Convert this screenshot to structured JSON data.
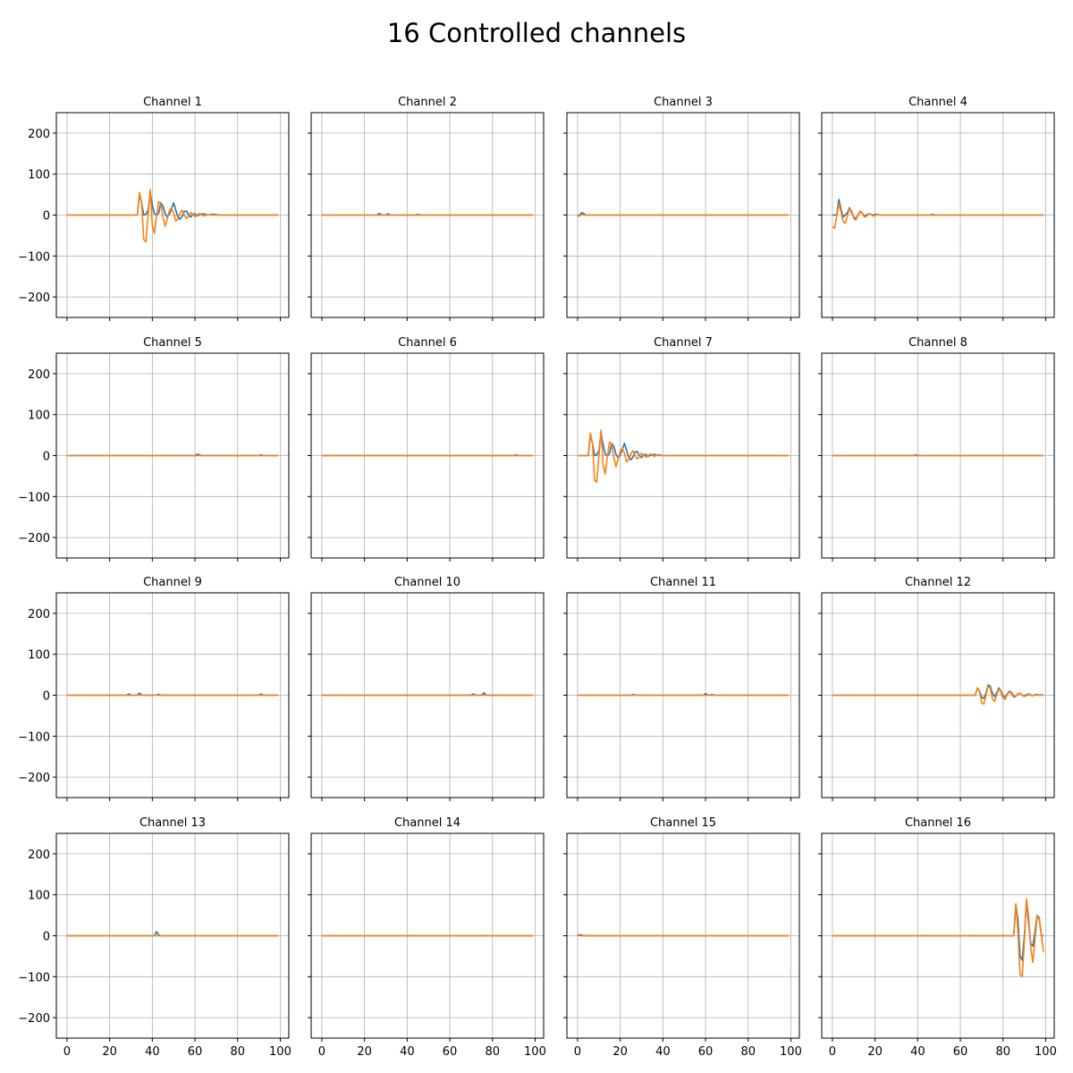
{
  "figure": {
    "title": "16 Controlled channels"
  },
  "colors": {
    "series_1": "#1f77b4",
    "series_2": "#ff7f0e",
    "grid": "#b0b0b0"
  },
  "chart_data": {
    "type": "line",
    "layout": "4x4 grid of subplots, shared x and y axes",
    "grid": true,
    "xlim": [
      -5,
      104
    ],
    "ylim": [
      -250,
      250
    ],
    "x_ticks": [
      0,
      20,
      40,
      60,
      80,
      100
    ],
    "y_ticks": [
      200,
      100,
      0,
      -100,
      -200
    ],
    "x_tick_labels": [
      "0",
      "20",
      "40",
      "60",
      "80",
      "100"
    ],
    "y_tick_labels": [
      "200",
      "100",
      "0",
      "−100",
      "−200"
    ],
    "subplots": [
      {
        "title": "Channel 1",
        "series": [
          {
            "x": [
              0,
              33,
              34,
              35,
              36,
              37,
              38,
              39,
              40,
              41,
              42,
              43,
              44,
              45,
              46,
              47,
              48,
              49,
              50,
              51,
              52,
              53,
              54,
              55,
              56,
              57,
              58,
              59,
              60,
              61,
              62,
              63,
              64,
              66,
              68,
              72,
              99
            ],
            "y": [
              0,
              0,
              50,
              30,
              0,
              2,
              12,
              55,
              25,
              3,
              0,
              5,
              30,
              22,
              3,
              -5,
              2,
              15,
              30,
              12,
              -5,
              -10,
              -3,
              8,
              10,
              0,
              -5,
              2,
              3,
              -2,
              0,
              2,
              3,
              0,
              2,
              0,
              0
            ]
          },
          {
            "x": [
              0,
              33,
              34,
              35,
              36,
              37,
              38,
              39,
              40,
              41,
              42,
              43,
              44,
              45,
              46,
              47,
              48,
              49,
              50,
              51,
              52,
              53,
              54,
              55,
              56,
              57,
              58,
              59,
              60,
              61,
              62,
              63,
              64,
              66,
              68,
              72,
              99
            ],
            "y": [
              0,
              0,
              55,
              30,
              -60,
              -65,
              0,
              62,
              -25,
              -45,
              0,
              33,
              28,
              -5,
              -27,
              -10,
              10,
              18,
              5,
              -15,
              -10,
              5,
              12,
              0,
              -8,
              -3,
              6,
              2,
              -4,
              -2,
              4,
              1,
              -2,
              1,
              0,
              0,
              0
            ]
          }
        ]
      },
      {
        "title": "Channel 2",
        "series": [
          {
            "x": [
              0,
              26,
              27,
              28,
              30,
              31,
              32,
              44,
              45,
              46,
              99
            ],
            "y": [
              0,
              0,
              4,
              0,
              0,
              3,
              0,
              0,
              2,
              0,
              0
            ]
          },
          {
            "x": [
              0,
              99
            ],
            "y": [
              0,
              0
            ]
          }
        ]
      },
      {
        "title": "Channel 3",
        "series": [
          {
            "x": [
              0,
              1,
              2,
              3,
              4,
              99
            ],
            "y": [
              -2,
              0,
              6,
              3,
              0,
              0
            ]
          },
          {
            "x": [
              0,
              1,
              2,
              3,
              4,
              99
            ],
            "y": [
              -4,
              -2,
              2,
              0,
              0,
              0
            ]
          }
        ]
      },
      {
        "title": "Channel 4",
        "series": [
          {
            "x": [
              0,
              1,
              2,
              3,
              4,
              5,
              6,
              7,
              8,
              9,
              10,
              11,
              12,
              13,
              14,
              15,
              16,
              17,
              18,
              19,
              20,
              21,
              22,
              46,
              47,
              48,
              99
            ],
            "y": [
              0,
              0,
              0,
              38,
              15,
              -5,
              0,
              5,
              18,
              6,
              -5,
              -8,
              0,
              8,
              5,
              -3,
              0,
              3,
              2,
              0,
              1,
              2,
              0,
              0,
              2,
              0,
              0
            ]
          },
          {
            "x": [
              0,
              1,
              2,
              3,
              4,
              5,
              6,
              7,
              8,
              9,
              10,
              11,
              12,
              13,
              14,
              15,
              16,
              17,
              18,
              19,
              20,
              21,
              22,
              23,
              99
            ],
            "y": [
              -28,
              -32,
              -5,
              28,
              8,
              -15,
              -20,
              -2,
              15,
              10,
              -8,
              -12,
              0,
              10,
              5,
              -5,
              -3,
              3,
              2,
              -2,
              -1,
              1,
              0,
              0,
              0
            ]
          }
        ]
      },
      {
        "title": "Channel 5",
        "series": [
          {
            "x": [
              0,
              60,
              61,
              62,
              63,
              90,
              91,
              92,
              99
            ],
            "y": [
              0,
              0,
              3,
              2,
              0,
              0,
              2,
              0,
              0
            ]
          },
          {
            "x": [
              0,
              99
            ],
            "y": [
              0,
              0
            ]
          }
        ]
      },
      {
        "title": "Channel 6",
        "series": [
          {
            "x": [
              0,
              90,
              91,
              92,
              99
            ],
            "y": [
              0,
              0,
              2,
              0,
              0
            ]
          },
          {
            "x": [
              0,
              99
            ],
            "y": [
              0,
              0
            ]
          }
        ]
      },
      {
        "title": "Channel 7",
        "series": [
          {
            "x": [
              0,
              5,
              6,
              7,
              8,
              9,
              10,
              11,
              12,
              13,
              14,
              15,
              16,
              17,
              18,
              19,
              20,
              21,
              22,
              23,
              24,
              25,
              26,
              27,
              28,
              29,
              30,
              31,
              32,
              33,
              34,
              35,
              36,
              37,
              38,
              40,
              42,
              99
            ],
            "y": [
              0,
              0,
              50,
              30,
              0,
              2,
              12,
              55,
              25,
              3,
              0,
              5,
              30,
              22,
              3,
              -5,
              2,
              15,
              30,
              12,
              -5,
              -10,
              -3,
              8,
              10,
              0,
              -5,
              2,
              3,
              -2,
              0,
              2,
              3,
              0,
              2,
              0,
              0,
              0
            ]
          },
          {
            "x": [
              0,
              5,
              6,
              7,
              8,
              9,
              10,
              11,
              12,
              13,
              14,
              15,
              16,
              17,
              18,
              19,
              20,
              21,
              22,
              23,
              24,
              25,
              26,
              27,
              28,
              29,
              30,
              31,
              32,
              33,
              34,
              35,
              36,
              37,
              38,
              40,
              42,
              99
            ],
            "y": [
              0,
              0,
              55,
              30,
              -60,
              -65,
              0,
              62,
              -25,
              -45,
              0,
              33,
              28,
              -5,
              -27,
              -10,
              10,
              18,
              5,
              -15,
              -10,
              5,
              12,
              0,
              -8,
              -3,
              6,
              2,
              -4,
              -2,
              4,
              1,
              -2,
              1,
              0,
              0,
              0,
              0
            ]
          }
        ]
      },
      {
        "title": "Channel 8",
        "series": [
          {
            "x": [
              0,
              38,
              39,
              40,
              99
            ],
            "y": [
              0,
              0,
              2,
              0,
              0
            ]
          },
          {
            "x": [
              0,
              99
            ],
            "y": [
              0,
              0
            ]
          }
        ]
      },
      {
        "title": "Channel 9",
        "series": [
          {
            "x": [
              0,
              28,
              29,
              30,
              33,
              34,
              35,
              42,
              43,
              44,
              90,
              91,
              92,
              99
            ],
            "y": [
              0,
              0,
              3,
              0,
              0,
              5,
              0,
              0,
              2,
              0,
              0,
              3,
              0,
              0
            ]
          },
          {
            "x": [
              0,
              99
            ],
            "y": [
              0,
              0
            ]
          }
        ]
      },
      {
        "title": "Channel 10",
        "series": [
          {
            "x": [
              0,
              70,
              71,
              72,
              75,
              76,
              77,
              99
            ],
            "y": [
              0,
              0,
              3,
              0,
              0,
              6,
              0,
              0
            ]
          },
          {
            "x": [
              0,
              99
            ],
            "y": [
              0,
              0
            ]
          }
        ]
      },
      {
        "title": "Channel 11",
        "series": [
          {
            "x": [
              0,
              25,
              26,
              27,
              59,
              60,
              61,
              62,
              63,
              64,
              99
            ],
            "y": [
              0,
              0,
              2,
              0,
              0,
              4,
              0,
              0,
              2,
              0,
              0
            ]
          },
          {
            "x": [
              0,
              99
            ],
            "y": [
              0,
              0
            ]
          }
        ]
      },
      {
        "title": "Channel 12",
        "series": [
          {
            "x": [
              0,
              67,
              68,
              69,
              70,
              71,
              72,
              73,
              74,
              75,
              76,
              77,
              78,
              79,
              80,
              81,
              82,
              83,
              84,
              85,
              86,
              87,
              88,
              89,
              90,
              91,
              92,
              93,
              94,
              95,
              96,
              97,
              98,
              99
            ],
            "y": [
              0,
              0,
              18,
              10,
              -5,
              -8,
              5,
              25,
              22,
              5,
              -3,
              5,
              18,
              10,
              -2,
              -5,
              3,
              10,
              6,
              -2,
              -3,
              3,
              5,
              0,
              -2,
              1,
              3,
              0,
              -1,
              1,
              2,
              0,
              1,
              0
            ]
          },
          {
            "x": [
              0,
              67,
              68,
              69,
              70,
              71,
              72,
              73,
              74,
              75,
              76,
              77,
              78,
              79,
              80,
              81,
              82,
              83,
              84,
              85,
              86,
              87,
              88,
              89,
              90,
              91,
              92,
              93,
              94,
              95,
              96,
              97,
              98,
              99
            ],
            "y": [
              0,
              0,
              18,
              8,
              -18,
              -22,
              0,
              22,
              18,
              -8,
              -15,
              0,
              15,
              8,
              -8,
              -10,
              2,
              8,
              3,
              -5,
              -3,
              3,
              5,
              0,
              -3,
              -1,
              2,
              1,
              -1,
              0,
              1,
              0,
              0,
              0
            ]
          }
        ]
      },
      {
        "title": "Channel 13",
        "series": [
          {
            "x": [
              0,
              41,
              42,
              43,
              44,
              99
            ],
            "y": [
              0,
              0,
              10,
              2,
              0,
              0
            ]
          },
          {
            "x": [
              0,
              99
            ],
            "y": [
              0,
              0
            ]
          }
        ]
      },
      {
        "title": "Channel 14",
        "series": [
          {
            "x": [
              0,
              99
            ],
            "y": [
              0,
              0
            ]
          },
          {
            "x": [
              0,
              99
            ],
            "y": [
              0,
              0
            ]
          }
        ]
      },
      {
        "title": "Channel 15",
        "series": [
          {
            "x": [
              0,
              1,
              2,
              3,
              99
            ],
            "y": [
              0,
              2,
              0,
              0,
              0
            ]
          },
          {
            "x": [
              0,
              1,
              2,
              3,
              99
            ],
            "y": [
              2,
              3,
              2,
              0,
              0
            ]
          }
        ]
      },
      {
        "title": "Channel 16",
        "series": [
          {
            "x": [
              0,
              85,
              86,
              87,
              88,
              89,
              90,
              91,
              92,
              93,
              94,
              95,
              96,
              97,
              98,
              99
            ],
            "y": [
              0,
              0,
              75,
              40,
              -50,
              -60,
              0,
              85,
              30,
              -20,
              -25,
              10,
              50,
              40,
              0,
              0
            ]
          },
          {
            "x": [
              0,
              85,
              86,
              87,
              88,
              89,
              90,
              91,
              92,
              93,
              94,
              95,
              96,
              97,
              98,
              99
            ],
            "y": [
              0,
              0,
              78,
              10,
              -95,
              -100,
              -15,
              90,
              45,
              -30,
              -65,
              -10,
              48,
              45,
              0,
              -40
            ]
          }
        ]
      }
    ]
  }
}
